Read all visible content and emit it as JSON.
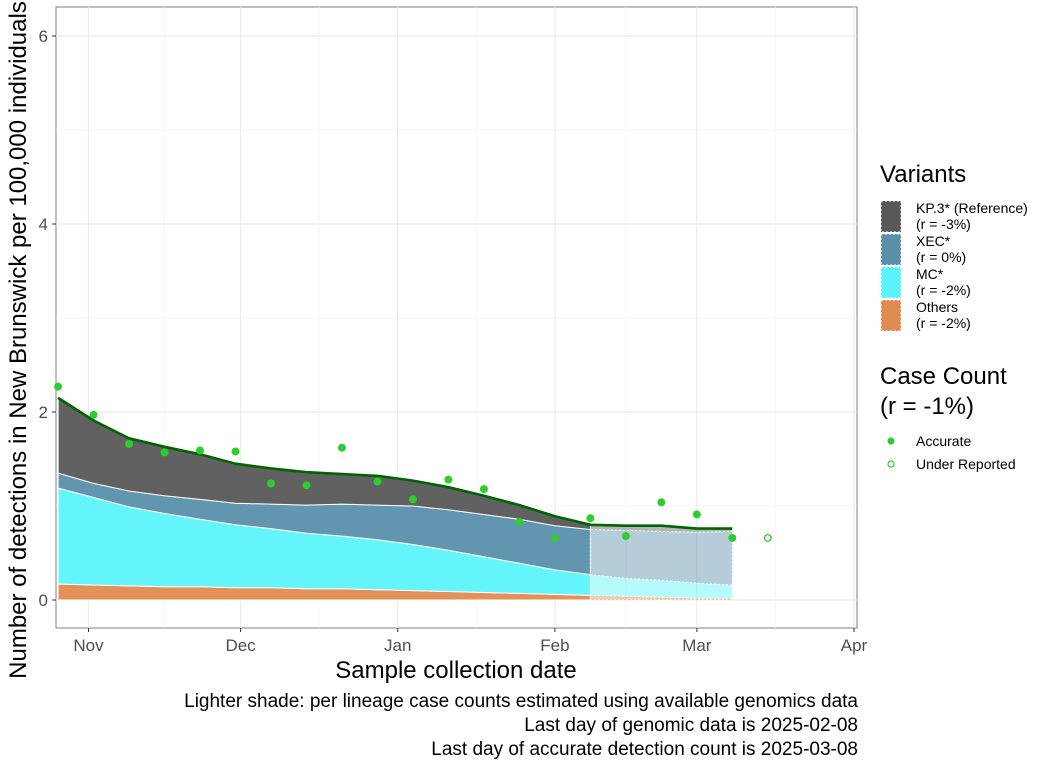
{
  "chart_data": {
    "type": "area",
    "xlabel": "Sample collection date",
    "ylabel": "Number of detections in New Brunswick per 100,000 individuals",
    "ylim": [
      0,
      6.3
    ],
    "xlim": [
      "2024-10-25",
      "2025-04-01"
    ],
    "x_ticks": [
      {
        "date": "2024-11-01",
        "label": "Nov"
      },
      {
        "date": "2024-12-01",
        "label": "Dec"
      },
      {
        "date": "2025-01-01",
        "label": "Jan"
      },
      {
        "date": "2025-02-01",
        "label": "Feb"
      },
      {
        "date": "2025-03-01",
        "label": "Mar"
      },
      {
        "date": "2025-04-01",
        "label": "Apr"
      }
    ],
    "y_ticks": [
      0,
      2,
      4,
      6
    ],
    "grid": true,
    "legend_placement": "right",
    "area_dates": [
      "2024-10-26",
      "2024-11-02",
      "2024-11-09",
      "2024-11-16",
      "2024-11-23",
      "2024-11-30",
      "2024-12-07",
      "2024-12-14",
      "2024-12-21",
      "2024-12-28",
      "2025-01-04",
      "2025-01-11",
      "2025-01-18",
      "2025-01-25",
      "2025-02-01",
      "2025-02-08",
      "2025-02-15",
      "2025-02-22",
      "2025-03-01",
      "2025-03-08"
    ],
    "lighter_shade_start": "2025-02-08",
    "series": [
      {
        "name": "Others",
        "r_label": "(r = -2%)",
        "color": "#e08b4f",
        "values": [
          0.17,
          0.16,
          0.15,
          0.14,
          0.14,
          0.13,
          0.13,
          0.12,
          0.12,
          0.11,
          0.1,
          0.09,
          0.08,
          0.07,
          0.06,
          0.05,
          0.04,
          0.03,
          0.02,
          0.02
        ]
      },
      {
        "name": "MC*",
        "r_label": "(r = -2%)",
        "color": "#5cf4fb",
        "values": [
          1.02,
          0.93,
          0.84,
          0.78,
          0.72,
          0.67,
          0.63,
          0.59,
          0.56,
          0.53,
          0.49,
          0.44,
          0.38,
          0.32,
          0.26,
          0.22,
          0.19,
          0.18,
          0.16,
          0.14
        ]
      },
      {
        "name": "XEC*",
        "r_label": "(r = 0%)",
        "color": "#5a8fab",
        "values": [
          0.16,
          0.15,
          0.17,
          0.19,
          0.21,
          0.23,
          0.26,
          0.3,
          0.34,
          0.37,
          0.41,
          0.43,
          0.45,
          0.47,
          0.47,
          0.48,
          0.51,
          0.52,
          0.54,
          0.57
        ]
      },
      {
        "name": "KP.3* (Reference)",
        "r_label": "(r = -3%)",
        "color": "#585858",
        "values": [
          0.8,
          0.67,
          0.56,
          0.52,
          0.48,
          0.42,
          0.38,
          0.35,
          0.32,
          0.31,
          0.27,
          0.24,
          0.2,
          0.15,
          0.1,
          0.05,
          0.05,
          0.06,
          0.04,
          0.03
        ]
      }
    ],
    "total_line": {
      "color": "#006400",
      "values": [
        2.15,
        1.91,
        1.72,
        1.63,
        1.55,
        1.45,
        1.4,
        1.36,
        1.34,
        1.32,
        1.27,
        1.2,
        1.11,
        1.01,
        0.89,
        0.8,
        0.79,
        0.79,
        0.76,
        0.76
      ]
    },
    "case_count": {
      "title_line1": "Case Count",
      "title_line2": "(r = -1%)",
      "color": "#2ecc2e",
      "accurate_label": "Accurate",
      "under_reported_label": "Under Reported",
      "accurate": [
        {
          "date": "2024-10-26",
          "value": 2.27
        },
        {
          "date": "2024-11-02",
          "value": 1.97
        },
        {
          "date": "2024-11-09",
          "value": 1.66
        },
        {
          "date": "2024-11-16",
          "value": 1.57
        },
        {
          "date": "2024-11-23",
          "value": 1.59
        },
        {
          "date": "2024-11-30",
          "value": 1.58
        },
        {
          "date": "2024-12-07",
          "value": 1.24
        },
        {
          "date": "2024-12-14",
          "value": 1.22
        },
        {
          "date": "2024-12-21",
          "value": 1.62
        },
        {
          "date": "2024-12-28",
          "value": 1.26
        },
        {
          "date": "2025-01-04",
          "value": 1.07
        },
        {
          "date": "2025-01-11",
          "value": 1.28
        },
        {
          "date": "2025-01-18",
          "value": 1.18
        },
        {
          "date": "2025-01-25",
          "value": 0.83
        },
        {
          "date": "2025-02-01",
          "value": 0.66
        },
        {
          "date": "2025-02-08",
          "value": 0.87
        },
        {
          "date": "2025-02-15",
          "value": 0.68
        },
        {
          "date": "2025-02-22",
          "value": 1.04
        },
        {
          "date": "2025-03-01",
          "value": 0.91
        },
        {
          "date": "2025-03-08",
          "value": 0.66
        }
      ],
      "under_reported": [
        {
          "date": "2025-03-15",
          "value": 0.66
        }
      ]
    },
    "legend": {
      "variants_title": "Variants"
    }
  },
  "caption": {
    "line1": "Lighter shade: per lineage case counts estimated using available genomics data",
    "line2": "Last day of genomic data is 2025-02-08",
    "line3": "Last day of accurate detection count is 2025-03-08"
  }
}
